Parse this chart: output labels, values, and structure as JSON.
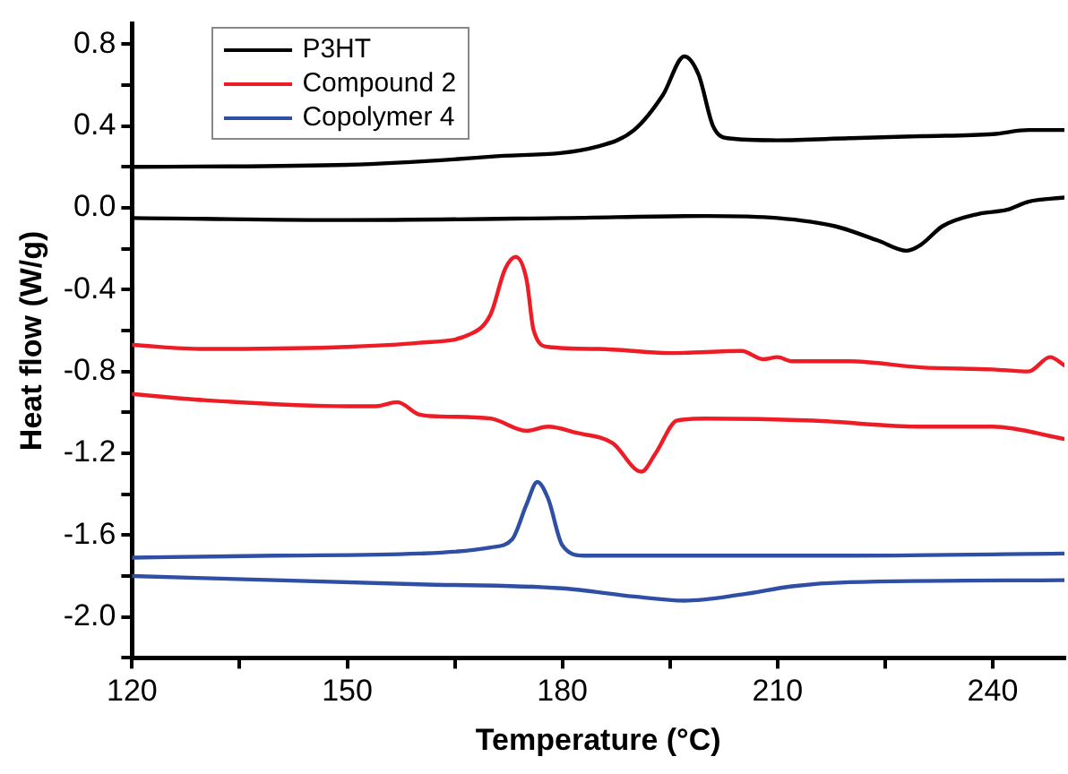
{
  "chart_data": {
    "type": "line",
    "xlabel": "Temperature (°C)",
    "ylabel": "Heat flow (W/g)",
    "xlim": [
      120,
      250
    ],
    "xticks": [
      120,
      {
        "value": 135,
        "label": null
      },
      150,
      {
        "value": 165,
        "label": null
      },
      180,
      {
        "value": 195,
        "label": null
      },
      210,
      {
        "value": 225,
        "label": null
      },
      240
    ],
    "ylim": [
      -2.2,
      0.9
    ],
    "yticks": [
      {
        "value": -2.2,
        "label": null
      },
      {
        "value": -2.0,
        "label": "-2.0"
      },
      {
        "value": -1.8,
        "label": null
      },
      {
        "value": -1.6,
        "label": "-1.6"
      },
      {
        "value": -1.4,
        "label": null
      },
      {
        "value": -1.2,
        "label": "-1.2"
      },
      {
        "value": -1.0,
        "label": null
      },
      {
        "value": -0.8,
        "label": "-0.8"
      },
      {
        "value": -0.6,
        "label": null
      },
      {
        "value": -0.4,
        "label": "-0.4"
      },
      {
        "value": -0.2,
        "label": null
      },
      {
        "value": 0.0,
        "label": "0.0"
      },
      {
        "value": 0.2,
        "label": null
      },
      {
        "value": 0.4,
        "label": "0.4"
      },
      {
        "value": 0.6,
        "label": null
      },
      {
        "value": 0.8,
        "label": "0.8"
      }
    ],
    "grid": false,
    "legend": "top left",
    "marker": "none",
    "line_style": "solid",
    "series": [
      {
        "name": "P3HT",
        "color": "#000000",
        "x": [
          120,
          150,
          170,
          185,
          190,
          194,
          197,
          199,
          201,
          203,
          210,
          220,
          230,
          240,
          245,
          250
        ],
        "values": [
          0.2,
          0.21,
          0.25,
          0.3,
          0.38,
          0.55,
          0.74,
          0.65,
          0.4,
          0.34,
          0.33,
          0.34,
          0.35,
          0.36,
          0.38,
          0.38
        ]
      },
      {
        "color": "#000000",
        "x": [
          120,
          150,
          180,
          200,
          210,
          218,
          224,
          228,
          230,
          233,
          238,
          242,
          245,
          250
        ],
        "values": [
          -0.05,
          -0.06,
          -0.05,
          -0.04,
          -0.05,
          -0.09,
          -0.16,
          -0.21,
          -0.18,
          -0.09,
          -0.03,
          -0.01,
          0.03,
          0.05
        ]
      },
      {
        "name": "Compound 2",
        "color": "#ee1c25",
        "x": [
          120,
          130,
          150,
          160,
          167,
          170,
          172,
          173.5,
          175,
          176,
          178,
          185,
          195,
          205,
          208,
          210,
          212,
          220,
          230,
          240,
          245,
          248,
          250
        ],
        "values": [
          -0.67,
          -0.69,
          -0.68,
          -0.66,
          -0.62,
          -0.52,
          -0.3,
          -0.24,
          -0.35,
          -0.6,
          -0.68,
          -0.69,
          -0.71,
          -0.7,
          -0.74,
          -0.73,
          -0.75,
          -0.75,
          -0.78,
          -0.79,
          -0.8,
          -0.73,
          -0.77
        ]
      },
      {
        "color": "#ee1c25",
        "x": [
          120,
          130,
          150,
          154,
          157,
          160,
          163,
          170,
          175,
          178,
          182,
          187,
          191,
          193,
          196,
          200,
          215,
          230,
          240,
          250
        ],
        "values": [
          -0.91,
          -0.94,
          -0.97,
          -0.97,
          -0.95,
          -1.01,
          -1.02,
          -1.03,
          -1.09,
          -1.07,
          -1.1,
          -1.15,
          -1.29,
          -1.2,
          -1.04,
          -1.03,
          -1.04,
          -1.07,
          -1.07,
          -1.13
        ]
      },
      {
        "name": "Copolymer 4",
        "color": "#2e4fa3",
        "x": [
          120,
          140,
          160,
          170,
          173,
          175,
          176.5,
          178,
          180,
          183,
          200,
          220,
          250
        ],
        "values": [
          -1.71,
          -1.7,
          -1.69,
          -1.66,
          -1.62,
          -1.45,
          -1.34,
          -1.42,
          -1.65,
          -1.7,
          -1.7,
          -1.7,
          -1.69
        ]
      },
      {
        "color": "#2e4fa3",
        "x": [
          120,
          140,
          160,
          180,
          190,
          197,
          205,
          212,
          220,
          250
        ],
        "values": [
          -1.8,
          -1.82,
          -1.84,
          -1.86,
          -1.9,
          -1.92,
          -1.89,
          -1.85,
          -1.83,
          -1.82
        ]
      }
    ]
  }
}
